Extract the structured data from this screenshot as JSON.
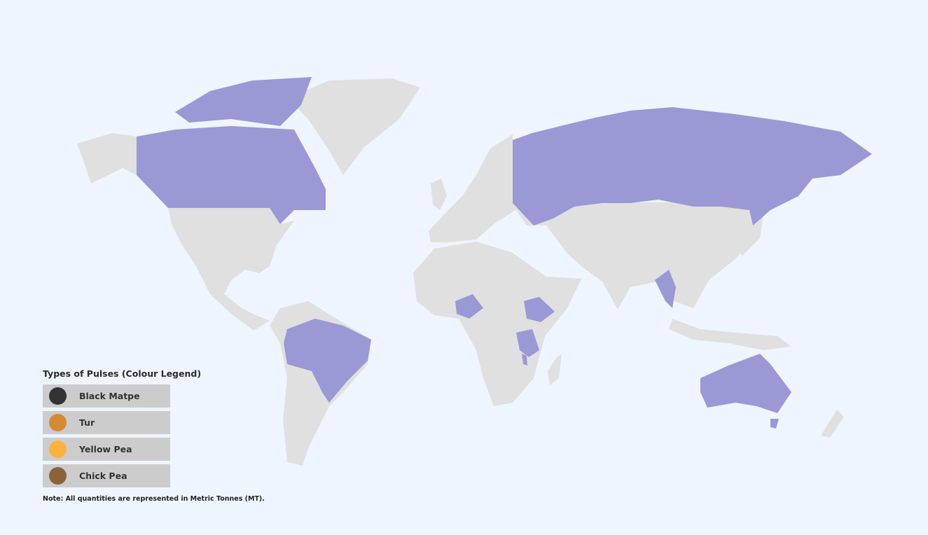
{
  "map": {
    "land_color": "#e0e0e0",
    "highlight_color": "#9b98d6",
    "background_color": "#eef5fe",
    "highlighted_countries": [
      "Canada",
      "Russia",
      "Brazil",
      "Nigeria",
      "Ethiopia",
      "Tanzania",
      "Malawi",
      "Myanmar",
      "Australia"
    ]
  },
  "legend": {
    "title": "Types of Pulses (Colour Legend)",
    "items": [
      {
        "label": "Black Matpe",
        "color": "#333333"
      },
      {
        "label": "Tur",
        "color": "#d38a33"
      },
      {
        "label": "Yellow Pea",
        "color": "#fdb13f"
      },
      {
        "label": "Chick Pea",
        "color": "#8c6239"
      }
    ]
  },
  "note": "Note: All quantities are represented in Metric Tonnes (MT)."
}
